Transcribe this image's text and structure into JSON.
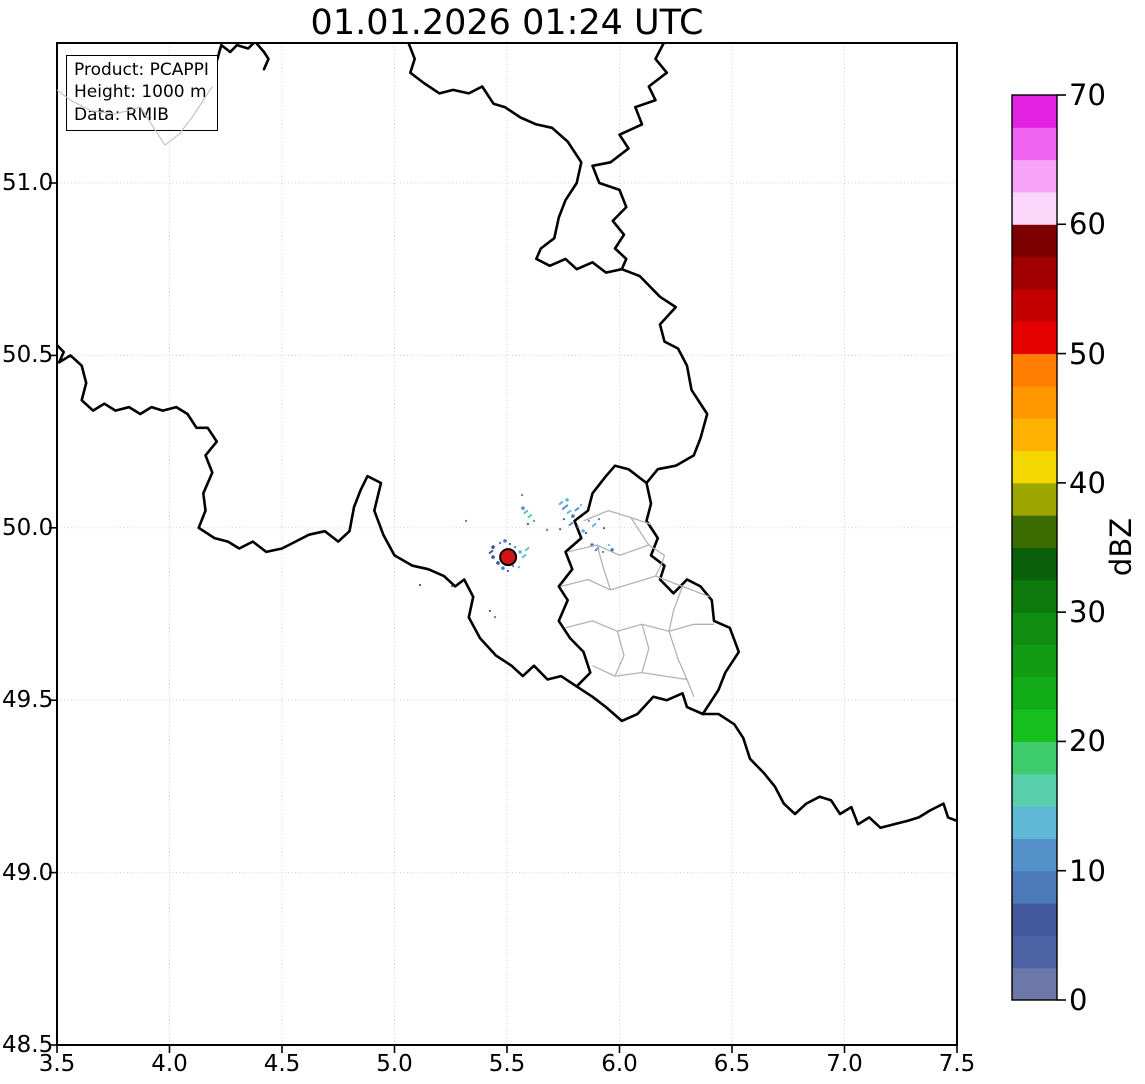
{
  "chart_data": {
    "type": "map",
    "title": "01.01.2026 01:24 UTC",
    "info_box": [
      "Product: PCAPPI",
      "Height: 1000 m",
      "Data: RMIB"
    ],
    "x_axis": {
      "range": [
        3.5,
        7.5
      ],
      "ticks": [
        "3.5",
        "4.0",
        "4.5",
        "5.0",
        "5.5",
        "6.0",
        "6.5",
        "7.0",
        "7.5"
      ]
    },
    "y_axis": {
      "range": [
        48.5,
        51.406
      ],
      "ticks": [
        "48.5",
        "49.0",
        "49.5",
        "50.0",
        "50.5",
        "51.0"
      ]
    },
    "grid": {
      "on": true,
      "color": "#cfcfcf"
    },
    "colorbar": {
      "label": "dBZ",
      "min": 0,
      "max": 70,
      "step": 2.5,
      "ticks": [
        "0",
        "10",
        "20",
        "30",
        "40",
        "50",
        "60",
        "70"
      ],
      "segment_colors_bottom_to_top": [
        "#6b78a8",
        "#4e63a4",
        "#43589c",
        "#4c7ab8",
        "#5591c9",
        "#5fb9d6",
        "#58d0ac",
        "#3ecb6b",
        "#15c01c",
        "#12ac18",
        "#119c14",
        "#108c11",
        "#0e7a0e",
        "#0a5f0a",
        "#3c6b00",
        "#9da600",
        "#f2d800",
        "#ffb300",
        "#ff9800",
        "#ff7d00",
        "#e60000",
        "#c30000",
        "#a00000",
        "#7c0000",
        "#fbd7fb",
        "#f7a3f7",
        "#f063f0",
        "#e322e3"
      ]
    },
    "radar_site": {
      "lon": 5.505,
      "lat": 49.915,
      "color": "#d31417",
      "edge": "#000000"
    },
    "border_style": {
      "national_color": "#000000",
      "national_width": 2.6,
      "internal_color": "#b3b3b3",
      "internal_width": 1.3,
      "river_color": "#c4c4c4",
      "river_width": 1.2
    },
    "national_borders": [
      [
        [
          4.08,
          51.27
        ],
        [
          4.16,
          51.3
        ],
        [
          4.2,
          51.33
        ],
        [
          4.23,
          51.4
        ],
        [
          4.27,
          51.38
        ],
        [
          4.3,
          51.4
        ],
        [
          4.35,
          51.39
        ],
        [
          4.38,
          51.41
        ],
        [
          4.42,
          51.38
        ],
        [
          4.44,
          51.36
        ],
        [
          4.42,
          51.33
        ]
      ],
      [
        [
          5.06,
          51.41
        ],
        [
          5.09,
          51.36
        ],
        [
          5.07,
          51.32
        ],
        [
          5.13,
          51.29
        ],
        [
          5.2,
          51.26
        ],
        [
          5.26,
          51.27
        ],
        [
          5.33,
          51.26
        ],
        [
          5.39,
          51.28
        ],
        [
          5.44,
          51.23
        ],
        [
          5.49,
          51.22
        ],
        [
          5.56,
          51.19
        ],
        [
          5.63,
          51.17
        ],
        [
          5.7,
          51.16
        ],
        [
          5.77,
          51.12
        ],
        [
          5.83,
          51.06
        ],
        [
          5.81,
          51.0
        ],
        [
          5.76,
          50.95
        ],
        [
          5.73,
          50.9
        ],
        [
          5.71,
          50.84
        ],
        [
          5.65,
          50.81
        ],
        [
          5.63,
          50.78
        ],
        [
          5.69,
          50.76
        ],
        [
          5.76,
          50.78
        ],
        [
          5.81,
          50.75
        ],
        [
          5.88,
          50.77
        ],
        [
          5.94,
          50.74
        ],
        [
          6.01,
          50.75
        ]
      ],
      [
        [
          6.2,
          51.41
        ],
        [
          6.16,
          51.36
        ],
        [
          6.21,
          51.32
        ],
        [
          6.13,
          51.28
        ],
        [
          6.16,
          51.24
        ],
        [
          6.07,
          51.22
        ],
        [
          6.1,
          51.17
        ],
        [
          6.0,
          51.14
        ],
        [
          6.04,
          51.1
        ],
        [
          5.96,
          51.06
        ],
        [
          5.88,
          51.05
        ],
        [
          5.91,
          51.0
        ],
        [
          6.0,
          50.98
        ],
        [
          6.03,
          50.93
        ],
        [
          5.97,
          50.89
        ],
        [
          6.02,
          50.85
        ],
        [
          5.98,
          50.81
        ],
        [
          6.03,
          50.78
        ],
        [
          6.01,
          50.75
        ]
      ],
      [
        [
          6.01,
          50.75
        ],
        [
          6.09,
          50.73
        ],
        [
          6.18,
          50.67
        ],
        [
          6.25,
          50.64
        ],
        [
          6.18,
          50.59
        ],
        [
          6.2,
          50.54
        ],
        [
          6.26,
          50.52
        ],
        [
          6.3,
          50.47
        ],
        [
          6.32,
          50.4
        ],
        [
          6.39,
          50.33
        ],
        [
          6.36,
          50.26
        ],
        [
          6.33,
          50.21
        ],
        [
          6.25,
          50.18
        ],
        [
          6.17,
          50.17
        ],
        [
          6.12,
          50.13
        ]
      ],
      [
        [
          6.12,
          50.13
        ],
        [
          6.14,
          50.07
        ],
        [
          6.12,
          50.02
        ],
        [
          6.17,
          49.97
        ],
        [
          6.14,
          49.92
        ],
        [
          6.2,
          49.89
        ],
        [
          6.18,
          49.85
        ],
        [
          6.24,
          49.81
        ],
        [
          6.3,
          49.85
        ],
        [
          6.36,
          49.83
        ],
        [
          6.41,
          49.79
        ],
        [
          6.42,
          49.73
        ],
        [
          6.49,
          49.71
        ],
        [
          6.53,
          49.64
        ],
        [
          6.47,
          49.58
        ],
        [
          6.44,
          49.53
        ],
        [
          6.37,
          49.46
        ],
        [
          6.3,
          49.48
        ],
        [
          6.28,
          49.52
        ],
        [
          6.21,
          49.5
        ],
        [
          6.15,
          49.51
        ],
        [
          6.08,
          49.46
        ],
        [
          6.01,
          49.44
        ],
        [
          5.94,
          49.48
        ],
        [
          5.88,
          49.51
        ],
        [
          5.81,
          49.54
        ],
        [
          5.87,
          49.58
        ],
        [
          5.84,
          49.64
        ],
        [
          5.78,
          49.68
        ],
        [
          5.73,
          49.73
        ],
        [
          5.77,
          49.79
        ],
        [
          5.73,
          49.83
        ],
        [
          5.79,
          49.88
        ],
        [
          5.76,
          49.93
        ],
        [
          5.83,
          49.97
        ],
        [
          5.8,
          50.02
        ],
        [
          5.86,
          50.05
        ],
        [
          5.88,
          50.1
        ],
        [
          5.94,
          50.15
        ],
        [
          5.98,
          50.18
        ],
        [
          6.04,
          50.17
        ],
        [
          6.08,
          50.15
        ],
        [
          6.12,
          50.13
        ]
      ],
      [
        [
          3.5,
          50.53
        ],
        [
          3.53,
          50.51
        ],
        [
          3.51,
          50.48
        ],
        [
          3.56,
          50.5
        ],
        [
          3.61,
          50.47
        ],
        [
          3.63,
          50.42
        ],
        [
          3.61,
          50.37
        ],
        [
          3.66,
          50.34
        ],
        [
          3.71,
          50.36
        ],
        [
          3.76,
          50.34
        ],
        [
          3.82,
          50.35
        ],
        [
          3.87,
          50.33
        ],
        [
          3.92,
          50.35
        ],
        [
          3.97,
          50.34
        ],
        [
          4.03,
          50.35
        ],
        [
          4.08,
          50.33
        ],
        [
          4.12,
          50.29
        ],
        [
          4.17,
          50.29
        ],
        [
          4.21,
          50.25
        ],
        [
          4.16,
          50.21
        ],
        [
          4.19,
          50.16
        ],
        [
          4.15,
          50.1
        ],
        [
          4.16,
          50.05
        ],
        [
          4.13,
          50.0
        ],
        [
          4.2,
          49.97
        ],
        [
          4.26,
          49.96
        ],
        [
          4.31,
          49.94
        ],
        [
          4.37,
          49.96
        ],
        [
          4.43,
          49.93
        ],
        [
          4.5,
          49.94
        ],
        [
          4.56,
          49.96
        ],
        [
          4.62,
          49.98
        ],
        [
          4.69,
          49.99
        ],
        [
          4.75,
          49.96
        ],
        [
          4.8,
          49.99
        ],
        [
          4.82,
          50.06
        ],
        [
          4.85,
          50.11
        ],
        [
          4.88,
          50.15
        ],
        [
          4.94,
          50.13
        ],
        [
          4.91,
          50.05
        ],
        [
          4.95,
          49.98
        ],
        [
          5.0,
          49.92
        ],
        [
          5.08,
          49.89
        ],
        [
          5.15,
          49.88
        ],
        [
          5.22,
          49.86
        ],
        [
          5.27,
          49.83
        ],
        [
          5.31,
          49.85
        ],
        [
          5.35,
          49.8
        ],
        [
          5.33,
          49.74
        ],
        [
          5.38,
          49.68
        ],
        [
          5.45,
          49.63
        ],
        [
          5.52,
          49.6
        ],
        [
          5.57,
          49.57
        ],
        [
          5.62,
          49.6
        ],
        [
          5.68,
          49.56
        ],
        [
          5.74,
          49.57
        ],
        [
          5.81,
          49.54
        ]
      ],
      [
        [
          6.37,
          49.46
        ],
        [
          6.44,
          49.46
        ],
        [
          6.51,
          49.43
        ],
        [
          6.55,
          49.39
        ],
        [
          6.58,
          49.33
        ],
        [
          6.64,
          49.29
        ],
        [
          6.69,
          49.25
        ],
        [
          6.73,
          49.2
        ],
        [
          6.78,
          49.17
        ],
        [
          6.83,
          49.2
        ],
        [
          6.89,
          49.22
        ],
        [
          6.94,
          49.21
        ],
        [
          6.98,
          49.17
        ],
        [
          7.03,
          49.19
        ],
        [
          7.06,
          49.14
        ],
        [
          7.11,
          49.16
        ],
        [
          7.16,
          49.13
        ],
        [
          7.22,
          49.14
        ],
        [
          7.28,
          49.15
        ],
        [
          7.33,
          49.16
        ],
        [
          7.38,
          49.18
        ],
        [
          7.44,
          49.2
        ],
        [
          7.46,
          49.16
        ],
        [
          7.5,
          49.15
        ]
      ]
    ],
    "internal_borders": [
      [
        [
          5.84,
          50.02
        ],
        [
          5.95,
          50.05
        ],
        [
          6.05,
          50.03
        ],
        [
          6.14,
          50.01
        ]
      ],
      [
        [
          5.77,
          49.93
        ],
        [
          5.9,
          49.95
        ],
        [
          6.0,
          49.92
        ],
        [
          6.13,
          49.95
        ],
        [
          6.2,
          49.92
        ]
      ],
      [
        [
          6.05,
          50.03
        ],
        [
          6.1,
          49.98
        ],
        [
          6.13,
          49.95
        ]
      ],
      [
        [
          5.74,
          49.83
        ],
        [
          5.86,
          49.85
        ],
        [
          5.96,
          49.82
        ],
        [
          6.06,
          49.84
        ],
        [
          6.16,
          49.86
        ],
        [
          6.28,
          49.83
        ],
        [
          6.4,
          49.8
        ]
      ],
      [
        [
          5.9,
          49.95
        ],
        [
          5.93,
          49.88
        ],
        [
          5.96,
          49.82
        ]
      ],
      [
        [
          5.76,
          49.71
        ],
        [
          5.88,
          49.73
        ],
        [
          5.99,
          49.7
        ],
        [
          6.1,
          49.72
        ],
        [
          6.22,
          49.7
        ],
        [
          6.33,
          49.72
        ],
        [
          6.42,
          49.72
        ]
      ],
      [
        [
          6.28,
          49.83
        ],
        [
          6.24,
          49.76
        ],
        [
          6.22,
          49.7
        ],
        [
          6.26,
          49.62
        ],
        [
          6.3,
          49.56
        ],
        [
          6.33,
          49.51
        ]
      ],
      [
        [
          5.99,
          49.7
        ],
        [
          6.02,
          49.63
        ],
        [
          5.98,
          49.57
        ]
      ],
      [
        [
          5.88,
          49.6
        ],
        [
          5.98,
          49.57
        ],
        [
          6.1,
          49.58
        ],
        [
          6.2,
          49.57
        ],
        [
          6.3,
          49.56
        ]
      ],
      [
        [
          6.16,
          49.86
        ],
        [
          6.19,
          49.9
        ],
        [
          6.2,
          49.92
        ]
      ],
      [
        [
          6.1,
          49.72
        ],
        [
          6.13,
          49.65
        ],
        [
          6.1,
          49.58
        ]
      ]
    ],
    "river_lines": [
      [
        [
          3.5,
          51.27
        ],
        [
          3.56,
          51.24
        ],
        [
          3.65,
          51.21
        ],
        [
          3.76,
          51.2
        ],
        [
          3.87,
          51.22
        ],
        [
          3.98,
          51.11
        ],
        [
          4.04,
          51.14
        ],
        [
          4.1,
          51.19
        ],
        [
          4.15,
          51.24
        ],
        [
          4.19,
          51.28
        ]
      ]
    ],
    "echo_palette": [
      "#3a5a9e",
      "#4c7ab8",
      "#5591c9",
      "#5fb9d6",
      "#58d0ac"
    ],
    "echoes": [
      [
        5.438,
        49.944,
        0,
        1
      ],
      [
        5.429,
        49.93,
        0,
        2
      ],
      [
        5.438,
        49.915,
        0,
        1
      ],
      [
        5.469,
        49.956,
        1,
        0
      ],
      [
        5.491,
        49.962,
        1,
        1
      ],
      [
        5.513,
        49.953,
        0,
        0
      ],
      [
        5.536,
        49.944,
        1,
        0
      ],
      [
        5.558,
        49.93,
        3,
        1
      ],
      [
        5.576,
        49.918,
        4,
        2
      ],
      [
        5.589,
        49.938,
        4,
        2
      ],
      [
        5.482,
        49.883,
        1,
        1
      ],
      [
        5.504,
        49.875,
        0,
        0
      ],
      [
        5.527,
        49.889,
        1,
        0
      ],
      [
        5.46,
        49.898,
        0,
        1
      ],
      [
        5.553,
        49.886,
        3,
        0
      ],
      [
        5.571,
        50.057,
        2,
        1
      ],
      [
        5.584,
        50.046,
        3,
        2
      ],
      [
        5.602,
        50.034,
        4,
        2
      ],
      [
        5.62,
        50.02,
        2,
        0
      ],
      [
        5.593,
        50.011,
        0,
        0
      ],
      [
        5.567,
        50.095,
        1,
        0
      ],
      [
        5.74,
        50.072,
        3,
        2
      ],
      [
        5.758,
        50.06,
        2,
        3
      ],
      [
        5.776,
        50.046,
        3,
        2
      ],
      [
        5.793,
        50.034,
        1,
        1
      ],
      [
        5.811,
        50.054,
        2,
        2
      ],
      [
        5.829,
        50.066,
        3,
        0
      ],
      [
        5.753,
        50.025,
        0,
        0
      ],
      [
        5.784,
        50.011,
        2,
        2
      ],
      [
        5.816,
        50.002,
        1,
        0
      ],
      [
        5.838,
        49.991,
        3,
        1
      ],
      [
        5.736,
        49.996,
        0,
        0
      ],
      [
        5.767,
        50.081,
        3,
        1
      ],
      [
        5.864,
        50.02,
        2,
        0
      ],
      [
        5.887,
        50.008,
        3,
        2
      ],
      [
        5.909,
        50.025,
        1,
        0
      ],
      [
        5.931,
        49.999,
        0,
        0
      ],
      [
        5.878,
        49.95,
        1,
        1
      ],
      [
        5.9,
        49.938,
        2,
        2
      ],
      [
        5.927,
        49.93,
        1,
        0
      ],
      [
        5.953,
        49.95,
        3,
        0
      ],
      [
        5.967,
        49.936,
        1,
        1
      ],
      [
        5.851,
        49.985,
        0,
        0
      ],
      [
        5.318,
        50.02,
        1,
        0
      ],
      [
        5.256,
        49.831,
        0,
        0
      ],
      [
        5.678,
        49.994,
        1,
        0
      ],
      [
        5.424,
        49.759,
        0,
        0
      ],
      [
        5.447,
        49.741,
        1,
        0
      ],
      [
        5.113,
        49.834,
        0,
        0
      ]
    ]
  }
}
